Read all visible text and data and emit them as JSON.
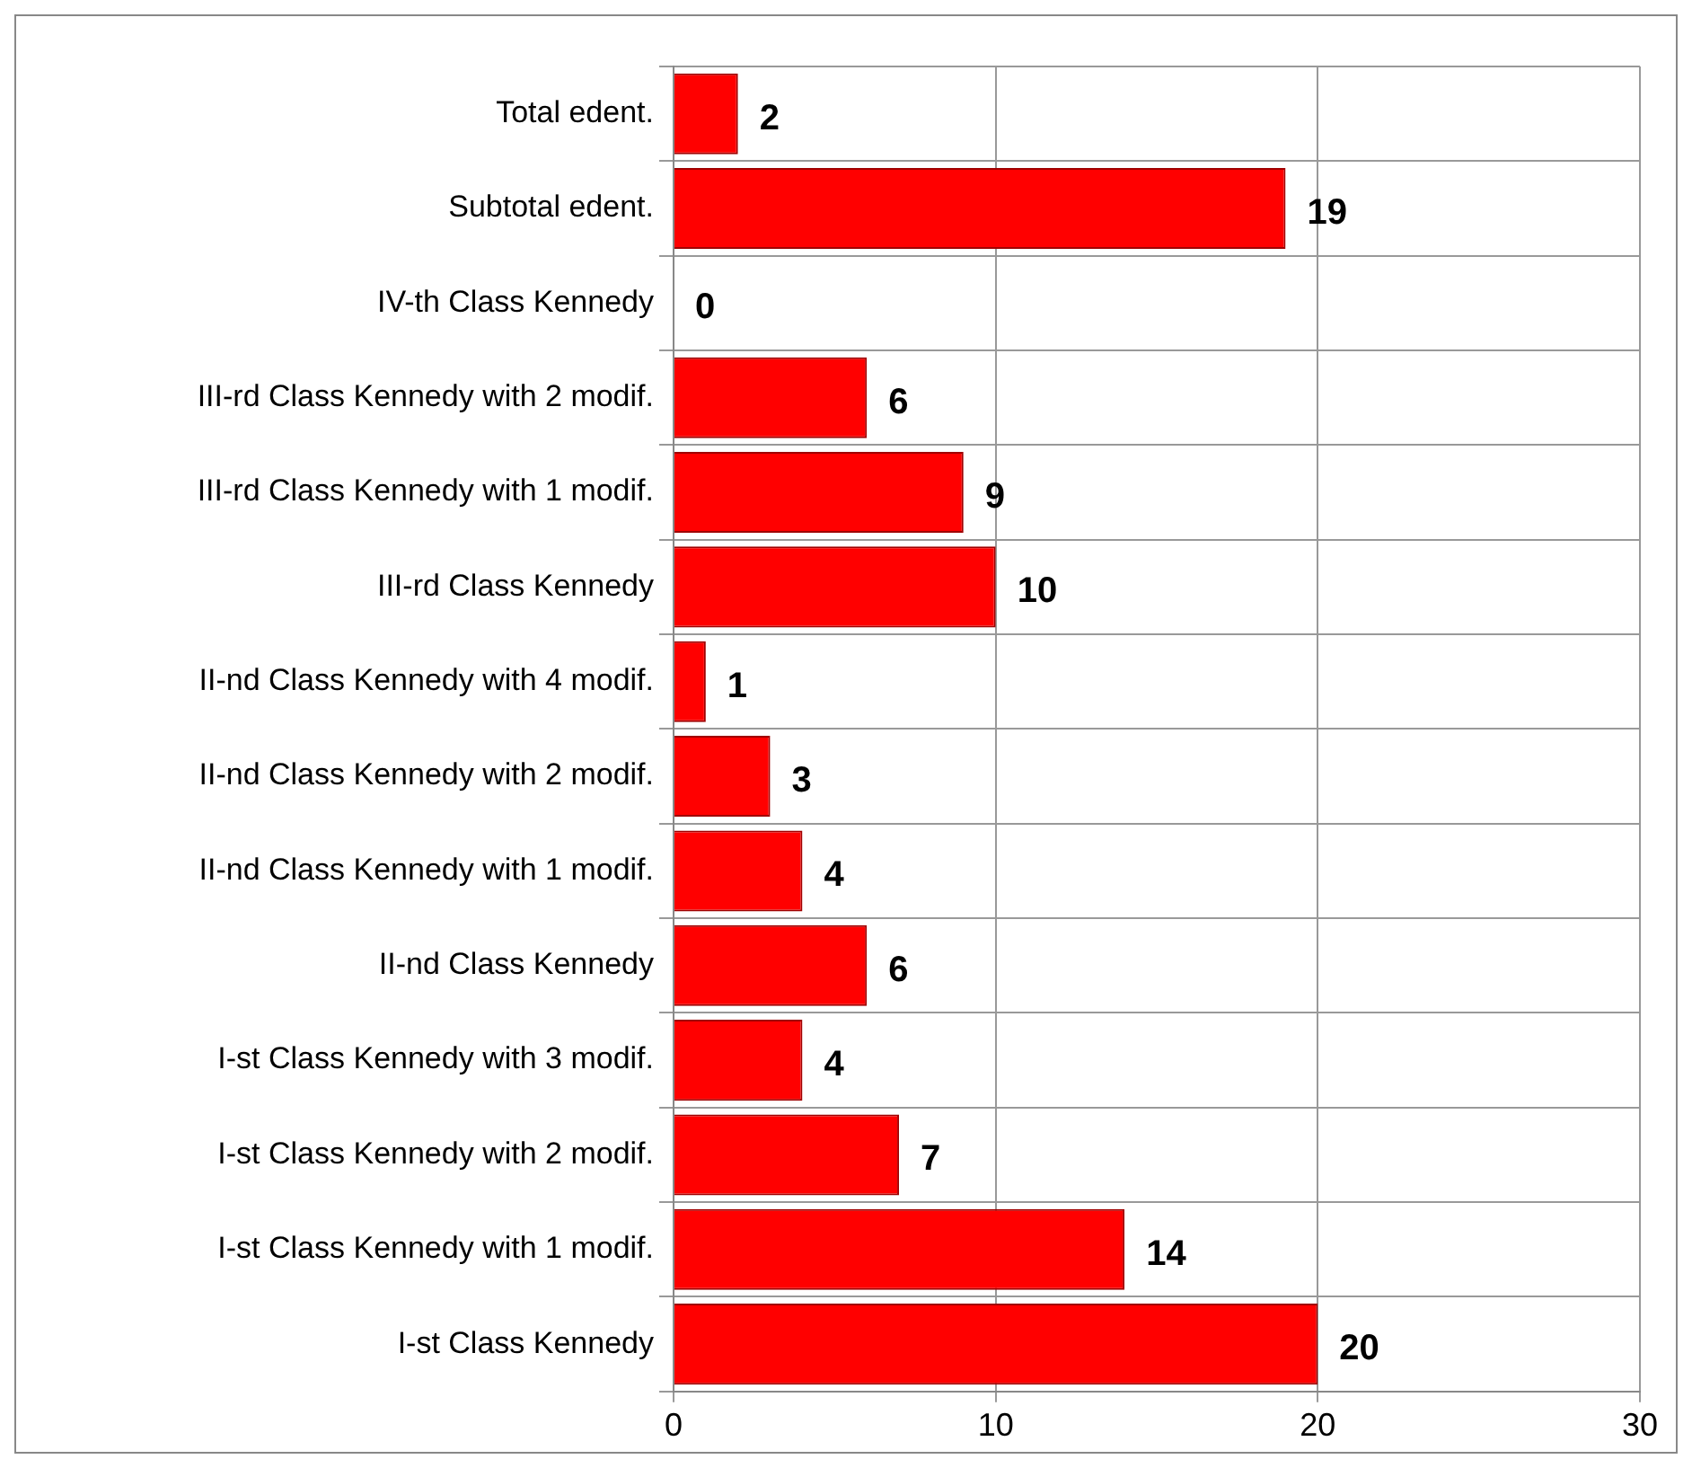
{
  "chart_data": {
    "type": "bar",
    "orientation": "horizontal",
    "categories": [
      "Total edent.",
      "Subtotal edent.",
      "IV-th Class Kennedy",
      "III-rd Class Kennedy with 2 modif.",
      "III-rd Class Kennedy with 1 modif.",
      "III-rd Class Kennedy",
      "II-nd Class Kennedy with 4 modif.",
      "II-nd Class Kennedy with 2 modif.",
      "II-nd Class Kennedy with 1 modif.",
      "II-nd Class Kennedy",
      "I-st Class Kennedy with 3 modif.",
      "I-st Class Kennedy with 2 modif.",
      "I-st Class Kennedy with 1 modif.",
      "I-st Class Kennedy"
    ],
    "values": [
      2,
      19,
      0,
      6,
      9,
      10,
      1,
      3,
      4,
      6,
      4,
      7,
      14,
      20
    ],
    "color": "#ff0000",
    "xlim": [
      0,
      30
    ],
    "xticks": [
      0,
      10,
      20,
      30
    ],
    "grid": true,
    "data_labels": true,
    "legend": false
  }
}
